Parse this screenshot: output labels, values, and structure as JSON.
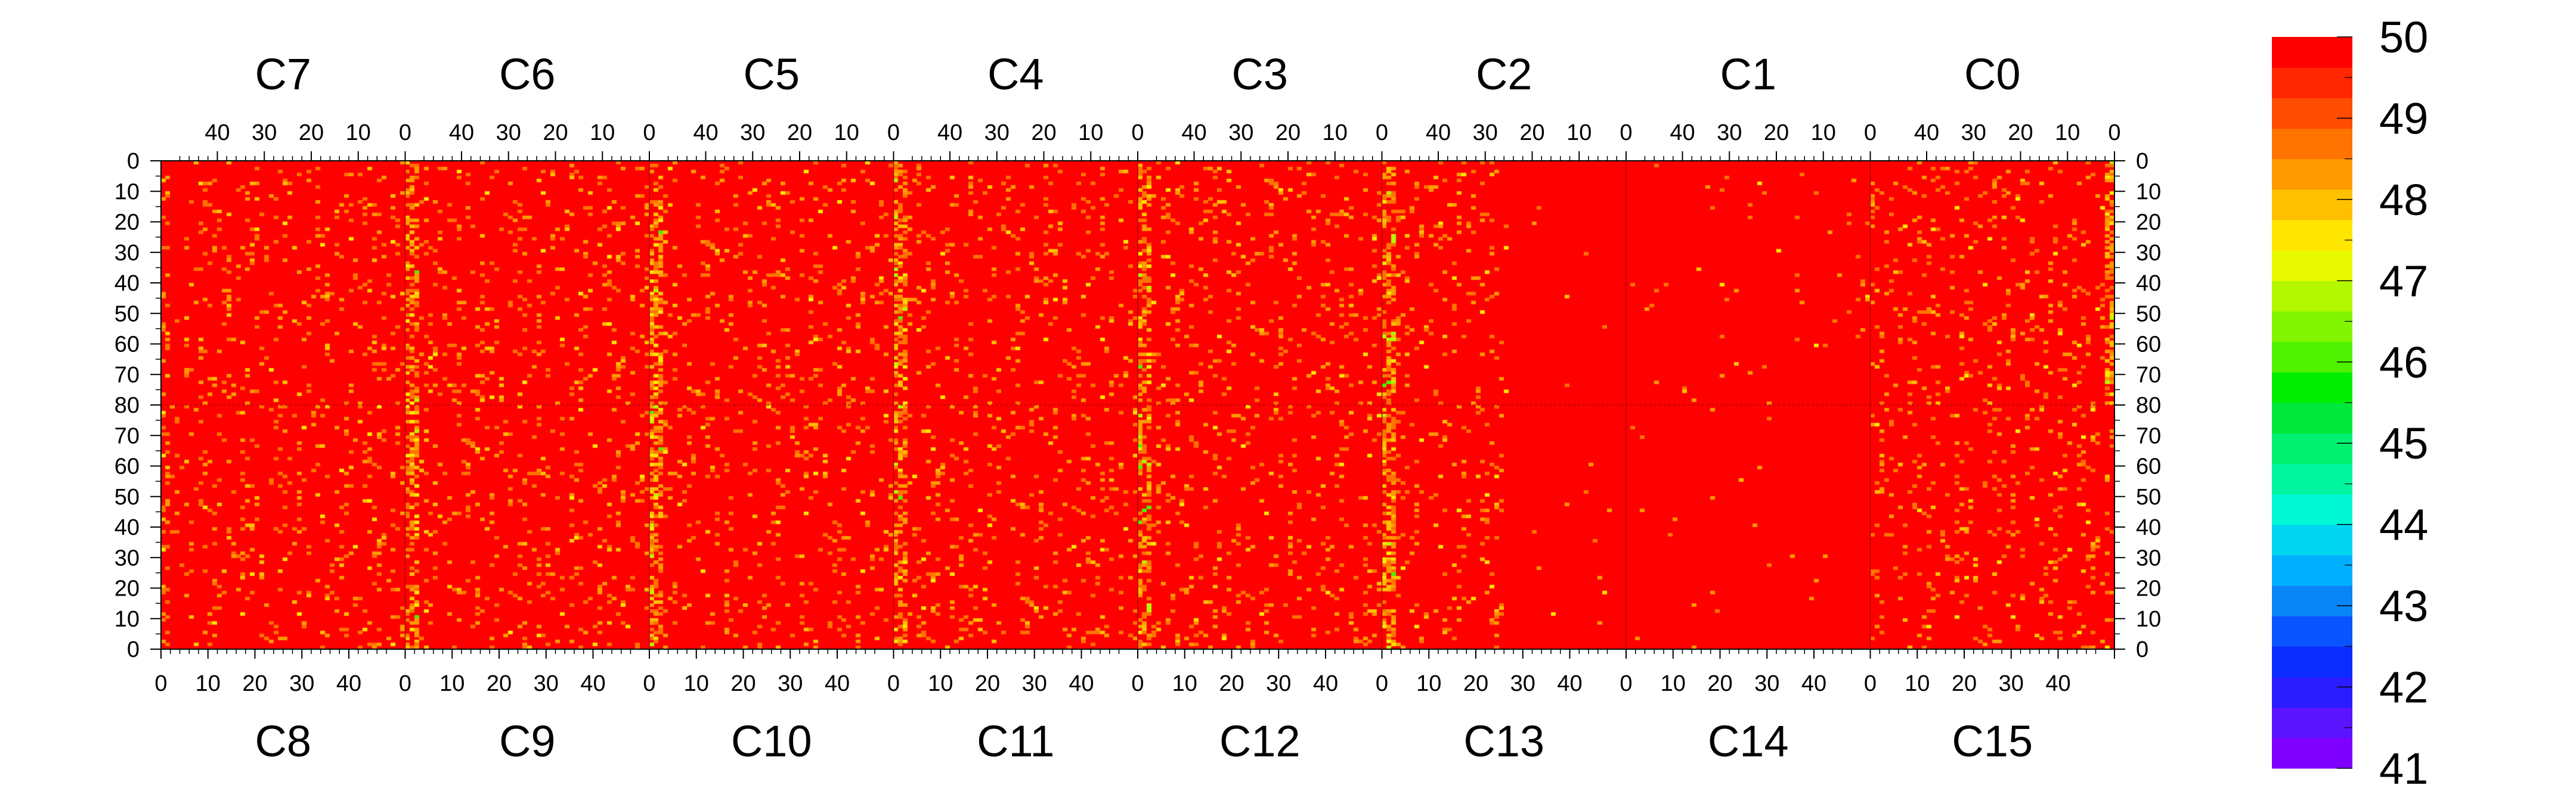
{
  "chart_data": {
    "type": "heatmap",
    "title": "",
    "xlabel": "",
    "ylabel": "",
    "top_chips": [
      "C7",
      "C6",
      "C5",
      "C4",
      "C3",
      "C2",
      "C1",
      "C0"
    ],
    "bottom_chips": [
      "C8",
      "C9",
      "C10",
      "C11",
      "C12",
      "C13",
      "C14",
      "C15"
    ],
    "top_column_tick_labels": [
      "40",
      "30",
      "20",
      "10",
      "0"
    ],
    "bottom_column_tick_labels": [
      "0",
      "10",
      "20",
      "30",
      "40"
    ],
    "left_row_tick_labels": [
      "0",
      "10",
      "20",
      "30",
      "40",
      "50",
      "60",
      "70",
      "80",
      "70",
      "60",
      "50",
      "40",
      "30",
      "20",
      "10",
      "0"
    ],
    "right_row_tick_labels": [
      "0",
      "10",
      "20",
      "30",
      "40",
      "50",
      "60",
      "70",
      "80",
      "70",
      "60",
      "50",
      "40",
      "30",
      "20",
      "10",
      "0"
    ],
    "columns_per_chip": 52,
    "rows_per_half": 80,
    "zlim": [
      41,
      50
    ],
    "colorbar_labels": [
      "50",
      "49",
      "48",
      "47",
      "46",
      "45",
      "44",
      "43",
      "42",
      "41"
    ],
    "colorbar_colors": [
      "#7f00ff",
      "#5a14ff",
      "#2b1cff",
      "#0a2cff",
      "#0a55ff",
      "#0a85f5",
      "#00b0ff",
      "#00d6f0",
      "#00f7d4",
      "#00f5a0",
      "#00f070",
      "#00e83c",
      "#00ef00",
      "#4ff200",
      "#82f500",
      "#b4f800",
      "#e8fa00",
      "#ffe600",
      "#ffc000",
      "#ff9a00",
      "#ff7300",
      "#ff4c00",
      "#ff2600",
      "#ff0000"
    ],
    "typical_value": 50,
    "summary": "Nearly all pixels at the maximum (50, red); noisier columns near 49-47 (orange/yellow/green) concentrated at chip edges, especially between C6/C5, C4/C3, C3/C2 and the right edge of C0; chips C1 and C14 almost uniform."
  }
}
